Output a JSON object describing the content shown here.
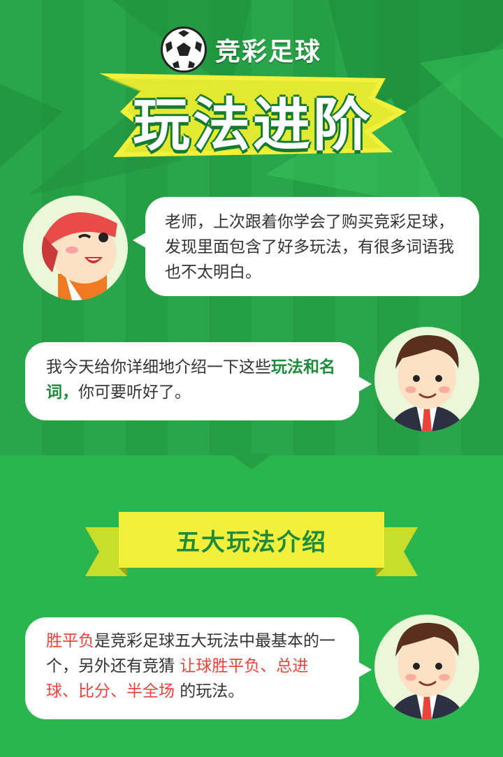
{
  "header": {
    "logo_text": "竞彩足球",
    "title": "玩法进阶"
  },
  "dialog": {
    "student_message": "老师，上次跟着你学会了购买竞彩足球，发现里面包含了好多玩法，有很多词语我也不太明白。",
    "teacher_message_part1": "我今天给你详细地介绍一下这些",
    "teacher_message_bold": "玩法和名词，",
    "teacher_message_part2": "你可要听好了。"
  },
  "section": {
    "ribbon_title": "五大玩法介绍"
  },
  "intro": {
    "red1": "胜平负",
    "text1": "是竞彩足球五大玩法中最基本的一个，另外还有竞猜 ",
    "red2": "让球胜平负、总进球、比分、半全场",
    "text2": " 的玩法。"
  },
  "colors": {
    "background_green": "#2aa64a",
    "accent_yellow": "#f2f03a",
    "highlight_red": "#e8443c",
    "highlight_green": "#1f8a3b"
  },
  "icons": [
    "soccer-ball-icon",
    "student-avatar",
    "teacher-avatar"
  ]
}
